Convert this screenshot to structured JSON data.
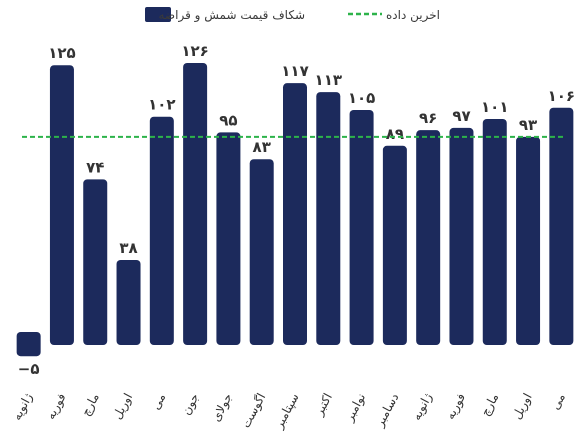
{
  "chart_data": {
    "type": "bar",
    "title": "",
    "xlabel": "",
    "ylabel": "",
    "categories": [
      "ژانویه",
      "فوریه",
      "مارچ",
      "اوریل",
      "می",
      "جون",
      "جولای",
      "اگوست",
      "سپتامبر",
      "اکتبر",
      "نوامبر",
      "دسامبر",
      "ژانویه",
      "فوریه",
      "مارچ",
      "اوریل",
      "می"
    ],
    "series": [
      {
        "name": "شکاف قیمت شمش و قراضه",
        "values": [
          -5,
          125,
          74,
          38,
          102,
          126,
          95,
          83,
          117,
          113,
          105,
          89,
          96,
          97,
          101,
          93,
          106
        ],
        "value_labels": [
          "−۵",
          "۱۲۵",
          "۷۴",
          "۳۸",
          "۱۰۲",
          "۱۲۶",
          "۹۵",
          "۸۳",
          "۱۱۷",
          "۱۱۳",
          "۱۰۵",
          "۸۹",
          "۹۶",
          "۹۷",
          "۱۰۱",
          "۹۳",
          "۱۰۶"
        ],
        "color": "#1c2a5c"
      }
    ],
    "reference_line": {
      "name": "اخرین داده",
      "value": 93,
      "color": "#2db34a",
      "style": "dashed"
    },
    "ylim": [
      -10,
      130
    ],
    "grid": false,
    "legend_position": "top-center"
  }
}
